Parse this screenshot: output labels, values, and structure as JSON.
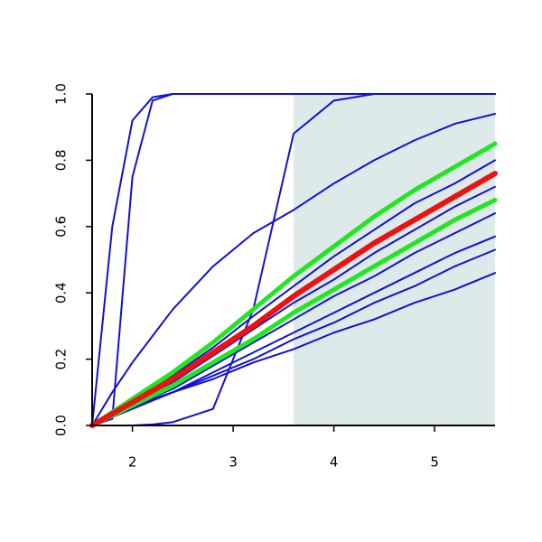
{
  "chart_data": {
    "type": "line",
    "x": [
      1.6,
      1.8,
      2.0,
      2.2,
      2.4,
      2.8,
      3.2,
      3.6,
      4.0,
      4.4,
      4.8,
      5.2,
      5.6
    ],
    "xlim": [
      1.6,
      5.6
    ],
    "ylim": [
      0,
      1
    ],
    "xticks": [
      2,
      3,
      4,
      5
    ],
    "yticks": [
      {
        "value": 0,
        "label": "0.0"
      },
      {
        "value": 0.2,
        "label": "0.2"
      },
      {
        "value": 0.4,
        "label": "0.4"
      },
      {
        "value": 0.6,
        "label": "0.6"
      },
      {
        "value": 0.8,
        "label": "0.8"
      },
      {
        "value": 1,
        "label": "1.0"
      }
    ],
    "shade_x": [
      3.6,
      5.6
    ],
    "shade_color": "#deeaea",
    "series": [
      {
        "color": "#1010d8",
        "width": 2,
        "values": [
          0,
          0.6,
          0.92,
          0.99,
          1,
          1,
          1,
          1,
          1,
          1,
          1,
          1,
          1
        ]
      },
      {
        "color": "#1010d8",
        "width": 2,
        "values": [
          0,
          0.02,
          0.75,
          0.98,
          1,
          1,
          1,
          1,
          1,
          1,
          1,
          1,
          1
        ]
      },
      {
        "color": "#1010d8",
        "width": 2,
        "values": [
          0,
          0,
          0,
          0.003,
          0.01,
          0.05,
          0.35,
          0.88,
          0.98,
          1,
          1,
          1,
          1
        ]
      },
      {
        "color": "#1010d8",
        "width": 2,
        "values": [
          0,
          0.1,
          0.19,
          0.27,
          0.35,
          0.48,
          0.58,
          0.65,
          0.73,
          0.8,
          0.86,
          0.91,
          0.94
        ]
      },
      {
        "color": "#1010d8",
        "width": 2,
        "values": [
          0,
          0.03,
          0.06,
          0.08,
          0.1,
          0.14,
          0.19,
          0.23,
          0.28,
          0.32,
          0.37,
          0.41,
          0.46
        ]
      },
      {
        "color": "#1010d8",
        "width": 2,
        "values": [
          0,
          0.038,
          0.075,
          0.11,
          0.15,
          0.235,
          0.33,
          0.42,
          0.51,
          0.59,
          0.67,
          0.73,
          0.8
        ]
      },
      {
        "color": "#1010d8",
        "width": 2,
        "values": [
          0,
          0.033,
          0.066,
          0.1,
          0.13,
          0.21,
          0.29,
          0.37,
          0.44,
          0.52,
          0.59,
          0.66,
          0.72
        ]
      },
      {
        "color": "#1010d8",
        "width": 2,
        "values": [
          0,
          0.028,
          0.056,
          0.085,
          0.11,
          0.18,
          0.25,
          0.32,
          0.39,
          0.45,
          0.52,
          0.58,
          0.64
        ]
      },
      {
        "color": "#1010d8",
        "width": 2,
        "values": [
          0,
          0.025,
          0.05,
          0.075,
          0.1,
          0.16,
          0.22,
          0.28,
          0.34,
          0.4,
          0.46,
          0.52,
          0.57
        ]
      },
      {
        "color": "#1010d8",
        "width": 2,
        "values": [
          0,
          0.03,
          0.055,
          0.08,
          0.1,
          0.15,
          0.2,
          0.26,
          0.31,
          0.37,
          0.42,
          0.48,
          0.53
        ]
      },
      {
        "color": "#22e622",
        "width": 5,
        "values": [
          0,
          0.04,
          0.08,
          0.12,
          0.16,
          0.25,
          0.35,
          0.45,
          0.54,
          0.63,
          0.71,
          0.78,
          0.85
        ]
      },
      {
        "color": "#22e622",
        "width": 5,
        "values": [
          0,
          0.03,
          0.06,
          0.09,
          0.12,
          0.19,
          0.26,
          0.34,
          0.41,
          0.48,
          0.55,
          0.62,
          0.68
        ]
      },
      {
        "color": "#ee1111",
        "width": 6,
        "values": [
          0,
          0.035,
          0.07,
          0.105,
          0.14,
          0.22,
          0.3,
          0.39,
          0.47,
          0.55,
          0.62,
          0.69,
          0.76
        ]
      }
    ]
  }
}
